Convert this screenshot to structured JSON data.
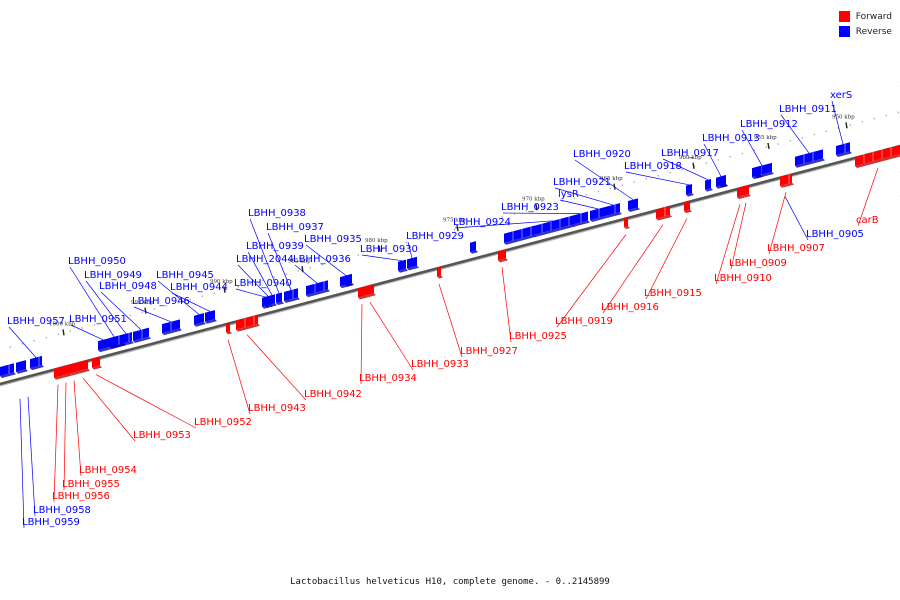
{
  "legend": {
    "forward_label": "Forward",
    "forward_color": "#ff0000",
    "reverse_label": "Reverse",
    "reverse_color": "#0000ff"
  },
  "caption": "Lactobacillus helveticus H10, complete genome. - 0..2145899",
  "axis_ticks": [
    "950 kbp",
    "955 kbp",
    "960 kbp",
    "965 kbp",
    "970 kbp",
    "975 kbp",
    "980 kbp",
    "985 kbp",
    "990 kbp",
    "995 kbp",
    "1000 kbp"
  ],
  "reverse_genes": [
    "xerS",
    "LBHH_0911",
    "LBHH_0912",
    "LBHH_0913",
    "LBHH_0917",
    "LBHH_0918",
    "LBHH_0920",
    "LBHH_0921",
    "lysR",
    "LBHH_0923",
    "LBHH_0924",
    "LBHH_0929",
    "LBHH_0930",
    "LBHH_0935",
    "LBHH_0936",
    "LBHH_0937",
    "LBHH_0938",
    "LBHH_0939",
    "LBHH_2044",
    "LBHH_0940",
    "LBHH_0944",
    "LBHH_0945",
    "LBHH_0946",
    "LBHH_0948",
    "LBHH_0949",
    "LBHH_0950",
    "LBHH_0951",
    "LBHH_0957",
    "LBHH_0905",
    "LBHH_0958",
    "LBHH_0959"
  ],
  "forward_genes": [
    "carB",
    "LBHH_0907",
    "LBHH_0909",
    "LBHH_0910",
    "LBHH_0915",
    "LBHH_0916",
    "LBHH_0919",
    "LBHH_0925",
    "LBHH_0927",
    "LBHH_0933",
    "LBHH_0934",
    "LBHH_0942",
    "LBHH_0943",
    "LBHH_0952",
    "LBHH_0953",
    "LBHH_0954",
    "LBHH_0955",
    "LBHH_0956"
  ]
}
